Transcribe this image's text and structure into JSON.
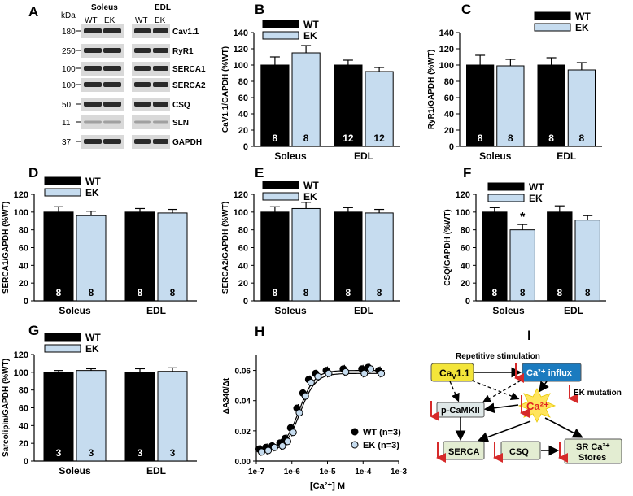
{
  "panels": {
    "A": "A",
    "B": "B",
    "C": "C",
    "D": "D",
    "E": "E",
    "F": "F",
    "G": "G",
    "H": "H",
    "I": "I"
  },
  "colors": {
    "wt": "#000000",
    "ek": "#c6dcef",
    "cav_box": "#f3e53a",
    "influx_box": "#1b7bbf",
    "pale_box": "#e3edd2",
    "burst": "#ffe45c",
    "ca_text": "#e02020",
    "arrow_red": "#d62a2a"
  },
  "blot": {
    "kda": "kDa",
    "soleus": "Soleus",
    "edl": "EDL",
    "wt": "WT",
    "ek": "EK",
    "rows": [
      {
        "mw": "180",
        "name": "Cav1.1"
      },
      {
        "mw": "250",
        "name": "RyR1"
      },
      {
        "mw": "100",
        "name": "SERCA1"
      },
      {
        "mw": "100",
        "name": "SERCA2"
      },
      {
        "mw": "50",
        "name": "CSQ"
      },
      {
        "mw": "11",
        "name": "SLN"
      },
      {
        "mw": "37",
        "name": "GAPDH"
      }
    ]
  },
  "chart_data": [
    {
      "panel": "B",
      "type": "bar",
      "categories": [
        "Soleus",
        "EDL"
      ],
      "ylabel": "Ca_V1.1/GAPDH (%WT)",
      "ylim": [
        0,
        140
      ],
      "yticks": [
        "0",
        "20",
        "40",
        "60",
        "80",
        "100",
        "120",
        "140"
      ],
      "series": [
        {
          "name": "WT",
          "values": [
            100,
            100
          ],
          "errors": [
            10,
            6
          ],
          "n": [
            "8",
            "12"
          ]
        },
        {
          "name": "EK",
          "values": [
            115,
            92
          ],
          "errors": [
            9,
            5
          ],
          "n": [
            "8",
            "12"
          ]
        }
      ]
    },
    {
      "panel": "C",
      "type": "bar",
      "categories": [
        "Soleus",
        "EDL"
      ],
      "ylabel": "RyR1/GAPDH (%WT)",
      "ylim": [
        0,
        140
      ],
      "yticks": [
        "0",
        "20",
        "40",
        "60",
        "80",
        "100",
        "120",
        "140"
      ],
      "series": [
        {
          "name": "WT",
          "values": [
            100,
            100
          ],
          "errors": [
            12,
            9
          ],
          "n": [
            "8",
            "8"
          ]
        },
        {
          "name": "EK",
          "values": [
            99,
            94
          ],
          "errors": [
            8,
            9
          ],
          "n": [
            "8",
            "8"
          ]
        }
      ]
    },
    {
      "panel": "D",
      "type": "bar",
      "categories": [
        "Soleus",
        "EDL"
      ],
      "ylabel": "SERCA1/GAPDH (%WT)",
      "ylim": [
        0,
        120
      ],
      "yticks": [
        "0",
        "20",
        "40",
        "60",
        "80",
        "100",
        "120"
      ],
      "series": [
        {
          "name": "WT",
          "values": [
            100,
            100
          ],
          "errors": [
            6,
            4
          ],
          "n": [
            "8",
            "8"
          ]
        },
        {
          "name": "EK",
          "values": [
            96,
            99
          ],
          "errors": [
            5,
            4
          ],
          "n": [
            "8",
            "8"
          ]
        }
      ]
    },
    {
      "panel": "E",
      "type": "bar",
      "categories": [
        "Soleus",
        "EDL"
      ],
      "ylabel": "SERCA2/GAPDH (%WT)",
      "ylim": [
        0,
        120
      ],
      "yticks": [
        "0",
        "20",
        "40",
        "60",
        "80",
        "100",
        "120"
      ],
      "series": [
        {
          "name": "WT",
          "values": [
            100,
            100
          ],
          "errors": [
            6,
            5
          ],
          "n": [
            "8",
            "8"
          ]
        },
        {
          "name": "EK",
          "values": [
            104,
            99
          ],
          "errors": [
            7,
            4
          ],
          "n": [
            "8",
            "8"
          ]
        }
      ]
    },
    {
      "panel": "F",
      "type": "bar",
      "categories": [
        "Soleus",
        "EDL"
      ],
      "ylabel": "CSQ/GAPDH (%WT)",
      "ylim": [
        0,
        120
      ],
      "yticks": [
        "0",
        "20",
        "40",
        "60",
        "80",
        "100",
        "120"
      ],
      "annotations": [
        {
          "series": "EK",
          "category": "Soleus",
          "text": "*"
        }
      ],
      "series": [
        {
          "name": "WT",
          "values": [
            100,
            100
          ],
          "errors": [
            5,
            7
          ],
          "n": [
            "8",
            "8"
          ]
        },
        {
          "name": "EK",
          "values": [
            80,
            91
          ],
          "errors": [
            6,
            5
          ],
          "n": [
            "8",
            "8"
          ]
        }
      ]
    },
    {
      "panel": "G",
      "type": "bar",
      "categories": [
        "Soleus",
        "EDL"
      ],
      "ylabel": "Sarcolipin/GAPDH (%WT)",
      "ylim": [
        0,
        120
      ],
      "yticks": [
        "0",
        "20",
        "40",
        "60",
        "80",
        "100",
        "120"
      ],
      "series": [
        {
          "name": "WT",
          "values": [
            100,
            100
          ],
          "errors": [
            2,
            4
          ],
          "n": [
            "3",
            "3"
          ]
        },
        {
          "name": "EK",
          "values": [
            102,
            101
          ],
          "errors": [
            2,
            4
          ],
          "n": [
            "3",
            "3"
          ]
        }
      ]
    },
    {
      "panel": "H",
      "type": "scatter",
      "xlabel": "[Ca2+] M",
      "ylabel": "ΔA340/Δt",
      "xscale": "log",
      "xlim": [
        1e-07,
        0.001
      ],
      "ylim": [
        0,
        0.07
      ],
      "xticks": [
        "1e-7",
        "1e-6",
        "1e-5",
        "1e-4",
        "1e-3"
      ],
      "yticks": [
        "0.00",
        "0.02",
        "0.04",
        "0.06"
      ],
      "series": [
        {
          "name": "WT (n=3)",
          "x": [
            1.3e-07,
            2e-07,
            3e-07,
            5e-07,
            7e-07,
            1e-06,
            1.5e-06,
            2.2e-06,
            3.2e-06,
            5e-06,
            1e-05,
            3e-05,
            0.0001,
            0.00015,
            0.0003
          ],
          "y": [
            0.008,
            0.009,
            0.01,
            0.012,
            0.015,
            0.022,
            0.035,
            0.045,
            0.054,
            0.058,
            0.06,
            0.061,
            0.061,
            0.062,
            0.06
          ]
        },
        {
          "name": "EK (n=3)",
          "x": [
            1.3e-07,
            2e-07,
            3e-07,
            5e-07,
            7e-07,
            1e-06,
            1.5e-06,
            2.2e-06,
            3.2e-06,
            5e-06,
            1e-05,
            3e-05,
            0.0001,
            0.00015,
            0.0003
          ],
          "y": [
            0.006,
            0.007,
            0.009,
            0.01,
            0.013,
            0.019,
            0.032,
            0.043,
            0.052,
            0.056,
            0.058,
            0.059,
            0.058,
            0.061,
            0.058
          ]
        }
      ]
    }
  ],
  "diagram_I": {
    "repetitive": "Repetitive stimulation",
    "cav": "Ca",
    "cav_sub": "V",
    "cav_suffix": "1.1",
    "influx": "Ca²⁺ influx",
    "ek_mutation": "EK mutation",
    "pcamkii": "p-CaMKII",
    "ca": "Ca²⁺",
    "serca": "SERCA",
    "csq": "CSQ",
    "sr1": "SR Ca²⁺",
    "sr2": "Stores"
  }
}
